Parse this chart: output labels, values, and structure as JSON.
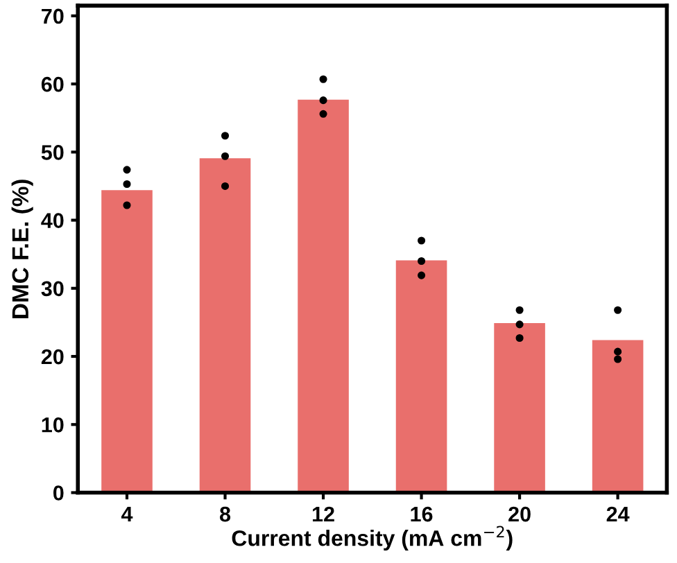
{
  "chart_data": {
    "type": "bar",
    "xlabel": "Current density (mA cm$^{−2}$)",
    "ylabel": "DMC F.E. (%)",
    "categories": [
      "4",
      "8",
      "12",
      "16",
      "20",
      "24"
    ],
    "ylim": [
      0,
      71.5
    ],
    "yticks": [
      0,
      10,
      20,
      30,
      40,
      50,
      60,
      70
    ],
    "grid": false,
    "legend": false,
    "series": [
      {
        "color": "#e96f6c",
        "values": [
          44.4,
          49.1,
          57.7,
          34.1,
          24.9,
          22.4
        ]
      },
      {
        "type": "scatter",
        "color": "#000000",
        "marker": "circle",
        "x": [
          "4",
          "4",
          "4",
          "8",
          "8",
          "8",
          "12",
          "12",
          "12",
          "16",
          "16",
          "16",
          "20",
          "20",
          "20",
          "24",
          "24",
          "24"
        ],
        "values": [
          47.4,
          45.3,
          42.2,
          52.4,
          49.4,
          45.0,
          60.7,
          57.6,
          55.6,
          37.0,
          34.0,
          31.9,
          26.8,
          24.7,
          22.7,
          26.8,
          20.7,
          19.6
        ]
      }
    ]
  }
}
